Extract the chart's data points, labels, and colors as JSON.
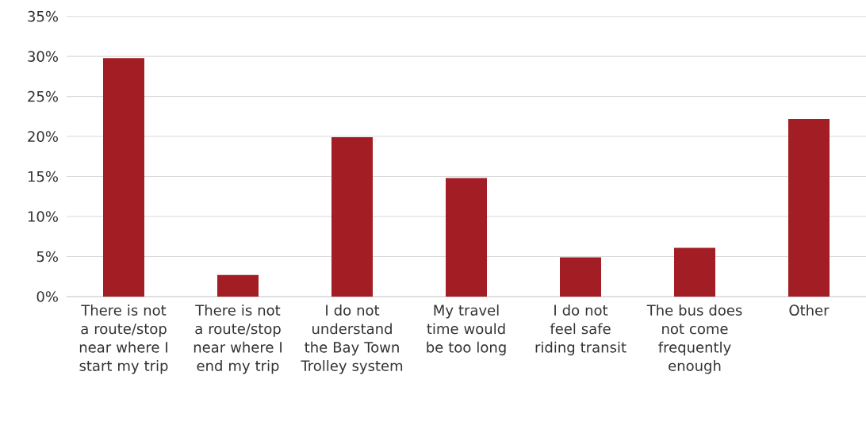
{
  "chart_data": {
    "type": "bar",
    "categories": [
      "There is not a route/stop near where I start my trip",
      "There is not a route/stop near where I end my trip",
      "I do not understand the Bay Town Trolley system",
      "My travel time would be too long",
      "I do not feel safe riding transit",
      "The bus does not come frequently enough",
      "Other"
    ],
    "values": [
      29.8,
      2.7,
      19.9,
      14.8,
      4.9,
      6.1,
      22.2
    ],
    "color": "#a21d24",
    "ylim": [
      0,
      35
    ],
    "yticks": [
      {
        "value": 0,
        "label": "0%"
      },
      {
        "value": 5,
        "label": "5%"
      },
      {
        "value": 10,
        "label": "10%"
      },
      {
        "value": 15,
        "label": "15%"
      },
      {
        "value": 20,
        "label": "20%"
      },
      {
        "value": 25,
        "label": "25%"
      },
      {
        "value": 30,
        "label": "30%"
      },
      {
        "value": 35,
        "label": "35%"
      }
    ],
    "grid": "y"
  }
}
